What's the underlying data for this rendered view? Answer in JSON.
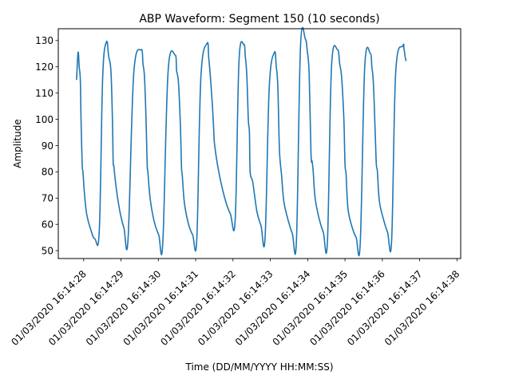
{
  "chart_data": {
    "type": "line",
    "title": "ABP Waveform: Segment 150 (10 seconds)",
    "xlabel": "Time (DD/MM/YYYY HH:MM:SS)",
    "ylabel": "Amplitude",
    "xlim": [
      "01/03/2020 16:14:27.32",
      "01/03/2020 16:14:38.10"
    ],
    "ylim": [
      47,
      134.5
    ],
    "x_ticks": [
      "01/03/2020 16:14:28",
      "01/03/2020 16:14:29",
      "01/03/2020 16:14:30",
      "01/03/2020 16:14:31",
      "01/03/2020 16:14:32",
      "01/03/2020 16:14:33",
      "01/03/2020 16:14:34",
      "01/03/2020 16:14:35",
      "01/03/2020 16:14:36",
      "01/03/2020 16:14:37",
      "01/03/2020 16:14:38"
    ],
    "y_ticks": [
      50,
      60,
      70,
      80,
      90,
      100,
      110,
      120,
      130
    ],
    "grid": false,
    "legend": "none",
    "series_color": "#1f77b4",
    "series": [
      {
        "x": [
          "01/03/2020 16:14:27.81",
          "01/03/2020 16:14:27.85",
          "01/03/2020 16:14:27.88",
          "01/03/2020 16:14:27.91",
          "01/03/2020 16:14:27.93",
          "01/03/2020 16:14:27.96",
          "01/03/2020 16:14:27.98",
          "01/03/2020 16:14:28.02",
          "01/03/2020 16:14:28.08",
          "01/03/2020 16:14:28.19",
          "01/03/2020 16:14:28.30",
          "01/03/2020 16:14:28.42",
          "01/03/2020 16:14:28.51",
          "01/03/2020 16:14:28.61",
          "01/03/2020 16:14:28.67",
          "01/03/2020 16:14:28.73",
          "01/03/2020 16:14:28.77",
          "01/03/2020 16:14:28.79",
          "01/03/2020 16:14:28.81",
          "01/03/2020 16:14:28.87",
          "01/03/2020 16:14:28.97",
          "01/03/2020 16:14:29.08",
          "01/03/2020 16:14:29.19",
          "01/03/2020 16:14:29.34",
          "01/03/2020 16:14:29.54",
          "01/03/2020 16:14:29.59",
          "01/03/2020 16:14:29.63",
          "01/03/2020 16:14:29.67",
          "01/03/2020 16:14:29.70",
          "01/03/2020 16:14:29.72",
          "01/03/2020 16:14:29.78",
          "01/03/2020 16:14:29.89",
          "01/03/2020 16:14:30.01",
          "01/03/2020 16:14:30.12",
          "01/03/2020 16:14:30.26",
          "01/03/2020 16:14:30.45",
          "01/03/2020 16:14:30.49",
          "01/03/2020 16:14:30.54",
          "01/03/2020 16:14:30.59",
          "01/03/2020 16:14:30.62",
          "01/03/2020 16:14:30.64",
          "01/03/2020 16:14:30.70",
          "01/03/2020 16:14:30.81",
          "01/03/2020 16:14:30.92",
          "01/03/2020 16:14:31.03",
          "01/03/2020 16:14:31.14",
          "01/03/2020 16:14:31.31",
          "01/03/2020 16:14:31.35",
          "01/03/2020 16:14:31.39",
          "01/03/2020 16:14:31.45",
          "01/03/2020 16:14:31.48",
          "01/03/2020 16:14:31.51",
          "01/03/2020 16:14:31.62",
          "01/03/2020 16:14:31.78",
          "01/03/2020 16:14:31.93",
          "01/03/2020 16:14:32.06",
          "01/03/2020 16:14:32.16",
          "01/03/2020 16:14:32.29",
          "01/03/2020 16:14:32.33",
          "01/03/2020 16:14:32.37",
          "01/03/2020 16:14:32.41",
          "01/03/2020 16:14:32.44",
          "01/03/2020 16:14:32.46",
          "01/03/2020 16:14:32.53",
          "01/03/2020 16:14:32.64",
          "01/03/2020 16:14:32.75",
          "01/03/2020 16:14:32.86",
          "01/03/2020 16:14:32.97",
          "01/03/2020 16:14:33.11",
          "01/03/2020 16:14:33.16",
          "01/03/2020 16:14:33.20",
          "01/03/2020 16:14:33.24",
          "01/03/2020 16:14:33.27",
          "01/03/2020 16:14:33.30",
          "01/03/2020 16:14:33.36",
          "01/03/2020 16:14:33.47",
          "01/03/2020 16:14:33.59",
          "01/03/2020 16:14:33.70",
          "01/03/2020 16:14:33.81",
          "01/03/2020 16:14:33.94",
          "01/03/2020 16:14:33.99",
          "01/03/2020 16:14:34.04",
          "01/03/2020 16:14:34.09",
          "01/03/2020 16:14:34.12",
          "01/03/2020 16:14:34.15",
          "01/03/2020 16:14:34.20",
          "01/03/2020 16:14:34.31",
          "01/03/2020 16:14:34.42",
          "01/03/2020 16:14:34.53",
          "01/03/2020 16:14:34.64",
          "01/03/2020 16:14:34.80",
          "01/03/2020 16:14:34.86",
          "01/03/2020 16:14:34.91",
          "01/03/2020 16:14:34.97",
          "01/03/2020 16:14:35.00",
          "01/03/2020 16:14:35.03",
          "01/03/2020 16:14:35.08",
          "01/03/2020 16:14:35.19",
          "01/03/2020 16:14:35.30",
          "01/03/2020 16:14:35.41",
          "01/03/2020 16:14:35.53",
          "01/03/2020 16:14:35.68",
          "01/03/2020 16:14:35.72",
          "01/03/2020 16:14:35.76",
          "01/03/2020 16:14:35.81",
          "01/03/2020 16:14:35.84",
          "01/03/2020 16:14:35.87",
          "01/03/2020 16:14:35.92",
          "01/03/2020 16:14:36.03",
          "01/03/2020 16:14:36.14",
          "01/03/2020 16:14:36.25",
          "01/03/2020 16:14:36.36",
          "01/03/2020 16:14:36.55",
          "01/03/2020 16:14:36.58",
          "01/03/2020 16:14:36.61",
          "01/03/2020 16:14:36.63",
          "01/03/2020 16:14:36.65"
        ],
        "values": [
          115,
          125.5,
          120,
          115,
          100,
          83,
          80,
          72,
          64,
          58,
          54.5,
          58,
          116,
          129.5,
          124,
          118.5,
          100,
          84,
          82,
          74,
          65,
          58.5,
          54.5,
          117,
          126.5,
          121,
          116,
          100,
          83,
          80,
          70,
          61,
          56,
          53,
          118,
          124.5,
          118.5,
          114,
          98,
          82,
          79,
          68,
          60,
          56,
          54.5,
          116,
          129,
          123.5,
          117,
          105,
          97,
          90,
          80,
          70,
          64,
          62,
          122,
          128.5,
          124,
          117,
          100,
          95,
          80,
          76,
          65,
          59.5,
          55,
          112,
          125.5,
          120,
          113,
          90,
          83,
          79,
          69,
          62,
          56.5,
          54,
          128,
          130.5,
          126,
          117.5,
          87,
          84,
          80,
          70,
          62,
          57,
          53.5,
          120,
          126.5,
          121,
          116,
          100,
          83,
          79,
          66,
          59,
          55,
          53,
          120,
          125,
          120,
          114,
          95,
          83,
          80,
          69,
          62,
          57,
          54,
          118,
          128,
          127,
          124,
          122.5,
          122.5
        ]
      }
    ]
  }
}
